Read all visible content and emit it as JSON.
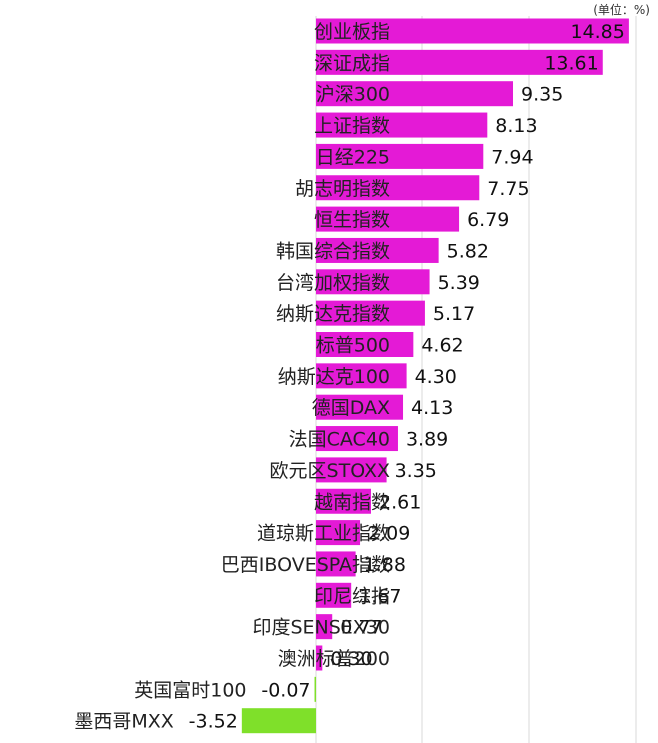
{
  "chart_data": {
    "type": "bar",
    "orientation": "horizontal",
    "unit_label": "(单位：%)",
    "categories": [
      "创业板指",
      "深证成指",
      "沪深300",
      "上证指数",
      "日经225",
      "胡志明指数",
      "恒生指数",
      "韩国综合指数",
      "台湾加权指数",
      "纳斯达克指数",
      "标普500",
      "纳斯达克100",
      "德国DAX",
      "法国CAC40",
      "欧元区STOXX",
      "越南指数",
      "道琼斯工业指数",
      "巴西IBOVESPA指数",
      "印尼综指",
      "印度SENSEX30",
      "澳洲标普200",
      "英国富时100",
      "墨西哥MXX"
    ],
    "values": [
      14.85,
      13.61,
      9.35,
      8.13,
      7.94,
      7.75,
      6.79,
      5.82,
      5.39,
      5.17,
      4.62,
      4.3,
      4.13,
      3.89,
      3.35,
      2.61,
      2.09,
      1.88,
      1.67,
      0.77,
      0.3,
      -0.07,
      -3.52
    ],
    "value_labels": [
      "14.85",
      "13.61",
      "9.35",
      "8.13",
      "7.94",
      "7.75",
      "6.79",
      "5.82",
      "5.39",
      "5.17",
      "4.62",
      "4.30",
      "4.13",
      "3.89",
      "3.35",
      "2.61",
      "2.09",
      "1.88",
      "1.67",
      "0.77",
      "0.30",
      "-0.07",
      "-3.52"
    ],
    "xlim": [
      -4.8,
      15.5
    ],
    "grid": true,
    "colors": {
      "positive": "#e41ad6",
      "negative": "#7fe02a",
      "grid": "#d9d9d9"
    }
  }
}
